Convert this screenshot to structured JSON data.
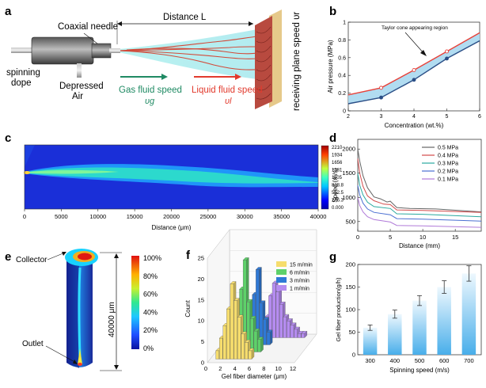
{
  "panels": {
    "a": {
      "letter": "a",
      "labels": {
        "coaxial": "Coaxial needle",
        "distance": "Distance L",
        "spinning": "spinning",
        "dope": "dope",
        "depressed": "Depressed",
        "air": "Air",
        "gas": "Gas fluid speed",
        "vg": "υg",
        "liquid": "Liquid fluid speed",
        "vl": "υl",
        "plane": "receiving plane speed υr"
      }
    },
    "b": {
      "letter": "b",
      "annotation": "Taylor cone appearing region"
    },
    "c": {
      "letter": "c",
      "colorbar_ticks": [
        "2210",
        "1934",
        "1656",
        "1381",
        "1105",
        "828.8",
        "552.5",
        "276.3",
        "0.000"
      ]
    },
    "d": {
      "letter": "d"
    },
    "e": {
      "letter": "e",
      "collector": "Collector",
      "outlet": "Outlet",
      "dimension": "40000 μm",
      "colorbar_ticks": [
        "100%",
        "80%",
        "60%",
        "40%",
        "20%",
        "0%"
      ]
    },
    "f": {
      "letter": "f"
    },
    "g": {
      "letter": "g"
    }
  },
  "colors": {
    "red_series": "#e8423a",
    "blue_series": "#2a4e86",
    "band_fill": "#a9d8f0",
    "bar_top": "#e8f6fe",
    "bar_bottom": "#4cb2ec"
  },
  "chart_data": [
    {
      "panel": "b",
      "type": "line",
      "xlabel": "Concentration (wt.%)",
      "ylabel": "Air pressure (MPa)",
      "xlim": [
        2,
        6
      ],
      "ylim": [
        0,
        1
      ],
      "xticks": [
        2,
        3,
        4,
        5,
        6
      ],
      "yticks": [
        0,
        0.2,
        0.4,
        0.6,
        0.8,
        1.0
      ],
      "x": [
        3,
        4,
        5
      ],
      "series": [
        {
          "values": [
            0.26,
            0.46,
            0.67
          ],
          "color": "#e8423a",
          "marker": "circle"
        },
        {
          "values": [
            0.15,
            0.35,
            0.59
          ],
          "color": "#2a4e86",
          "marker": "circle"
        }
      ],
      "band_lower": [
        [
          2,
          0.08
        ],
        [
          3,
          0.15
        ],
        [
          4,
          0.35
        ],
        [
          5,
          0.59
        ],
        [
          6,
          0.79
        ]
      ],
      "band_upper": [
        [
          2,
          0.18
        ],
        [
          3,
          0.26
        ],
        [
          4,
          0.46
        ],
        [
          5,
          0.67
        ],
        [
          6,
          0.88
        ]
      ]
    },
    {
      "panel": "c",
      "type": "heatmap",
      "xlabel": "Distance (μm)",
      "xlim": [
        0,
        40000
      ],
      "xticks": [
        0,
        5000,
        10000,
        15000,
        20000,
        25000,
        30000,
        35000,
        40000
      ],
      "colorbar_range": [
        0,
        2210
      ]
    },
    {
      "panel": "d",
      "type": "line",
      "xlabel": "Distance (mm)",
      "ylabel": "Speed (m/s)",
      "xlim": [
        0,
        19
      ],
      "ylim": [
        300,
        2200
      ],
      "xticks": [
        0,
        5,
        10,
        15
      ],
      "yticks": [
        500,
        1000,
        1500,
        2000
      ],
      "legend_position": "top-right",
      "series": [
        {
          "name": "0.5 MPa",
          "color": "#666666",
          "points": [
            [
              0,
              2000
            ],
            [
              0.3,
              1750
            ],
            [
              0.8,
              1450
            ],
            [
              1.5,
              1200
            ],
            [
              2.5,
              1010
            ],
            [
              3.5,
              970
            ],
            [
              4.5,
              905
            ],
            [
              5,
              920
            ],
            [
              6,
              790
            ],
            [
              8,
              770
            ],
            [
              12,
              760
            ],
            [
              19,
              700
            ]
          ]
        },
        {
          "name": "0.4 MPa",
          "color": "#d24a4a",
          "points": [
            [
              0,
              1800
            ],
            [
              0.3,
              1500
            ],
            [
              0.8,
              1230
            ],
            [
              1.5,
              1030
            ],
            [
              2.5,
              930
            ],
            [
              4,
              860
            ],
            [
              5,
              850
            ],
            [
              6,
              740
            ],
            [
              10,
              730
            ],
            [
              19,
              690
            ]
          ]
        },
        {
          "name": "0.3 MPa",
          "color": "#2aa9a0",
          "points": [
            [
              0,
              1500
            ],
            [
              0.3,
              1250
            ],
            [
              0.8,
              1050
            ],
            [
              1.5,
              900
            ],
            [
              2.5,
              810
            ],
            [
              5,
              770
            ],
            [
              6,
              660
            ],
            [
              10,
              650
            ],
            [
              19,
              600
            ]
          ]
        },
        {
          "name": "0.2 MPa",
          "color": "#4a6fd2",
          "points": [
            [
              0,
              1250
            ],
            [
              0.3,
              1050
            ],
            [
              0.8,
              880
            ],
            [
              1.5,
              760
            ],
            [
              2.5,
              690
            ],
            [
              5,
              640
            ],
            [
              6,
              560
            ],
            [
              10,
              550
            ],
            [
              19,
              510
            ]
          ]
        },
        {
          "name": "0.1 MPa",
          "color": "#b07ad8",
          "points": [
            [
              0,
              1000
            ],
            [
              0.3,
              830
            ],
            [
              0.8,
              700
            ],
            [
              1.5,
              600
            ],
            [
              2.5,
              540
            ],
            [
              5,
              490
            ],
            [
              6,
              420
            ],
            [
              10,
              410
            ],
            [
              19,
              380
            ]
          ]
        }
      ]
    },
    {
      "panel": "f",
      "type": "bar",
      "xlabel": "Gel fiber diameter (μm)",
      "ylabel": "Count",
      "xlim": [
        0,
        12
      ],
      "ylim": [
        0,
        25
      ],
      "xticks": [
        0,
        2,
        4,
        6,
        8,
        10,
        12
      ],
      "yticks": [
        0,
        5,
        10,
        15,
        20,
        25
      ],
      "legend_position": "top-right",
      "series": [
        {
          "name": "15 m/min",
          "color": "#f6dd6d",
          "bins": [
            [
              1.0,
              2
            ],
            [
              1.5,
              5
            ],
            [
              2.0,
              8
            ],
            [
              2.5,
              12
            ],
            [
              3.0,
              18
            ],
            [
              3.5,
              14
            ],
            [
              4.0,
              10
            ],
            [
              4.5,
              6
            ],
            [
              5.0,
              4
            ],
            [
              5.5,
              2
            ]
          ]
        },
        {
          "name": "6 m/min",
          "color": "#5ed16a",
          "bins": [
            [
              2.5,
              3
            ],
            [
              3.0,
              8
            ],
            [
              3.5,
              15
            ],
            [
              4.0,
              22
            ],
            [
              4.5,
              12
            ],
            [
              5.0,
              8
            ],
            [
              5.5,
              5
            ],
            [
              6.0,
              3
            ]
          ]
        },
        {
          "name": "3 m/min",
          "color": "#2f79d6",
          "bins": [
            [
              3.5,
              2
            ],
            [
              4.0,
              6
            ],
            [
              4.5,
              12
            ],
            [
              5.0,
              18
            ],
            [
              5.5,
              10
            ],
            [
              6.0,
              6
            ],
            [
              6.5,
              3
            ]
          ]
        },
        {
          "name": "1 m/min",
          "color": "#b58cf0",
          "bins": [
            [
              5.0,
              2
            ],
            [
              5.5,
              5
            ],
            [
              6.0,
              10
            ],
            [
              6.5,
              13
            ],
            [
              7.0,
              11
            ],
            [
              7.5,
              8
            ],
            [
              8.0,
              5
            ],
            [
              8.5,
              4
            ],
            [
              9.0,
              3
            ],
            [
              9.5,
              2
            ],
            [
              10.0,
              1
            ],
            [
              10.5,
              1
            ]
          ]
        }
      ]
    },
    {
      "panel": "g",
      "type": "bar",
      "xlabel": "Spinning speed (m/s)",
      "ylabel": "Gel fiber production(g/h)",
      "ylim": [
        0,
        200
      ],
      "yticks": [
        0,
        50,
        100,
        150,
        200
      ],
      "categories": [
        "300",
        "400",
        "500",
        "600",
        "700"
      ],
      "values": [
        60,
        90,
        120,
        150,
        180
      ],
      "errors": [
        6,
        9,
        11,
        14,
        17
      ]
    }
  ]
}
